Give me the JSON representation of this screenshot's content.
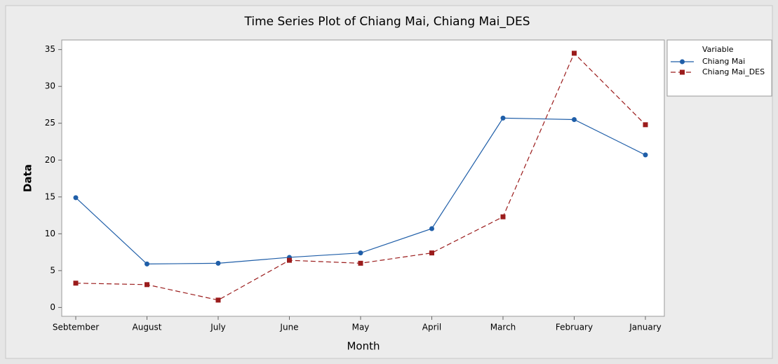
{
  "chart_data": {
    "type": "line",
    "title": "Time Series Plot of Chiang Mai, Chiang Mai_DES",
    "x_label": "Month",
    "y_label": "Data",
    "categories": [
      "Sebtember",
      "August",
      "July",
      "June",
      "May",
      "April",
      "March",
      "February",
      "January"
    ],
    "series": [
      {
        "name": "Chiang Mai",
        "color": "#1f5ea8",
        "line_style": "solid",
        "marker": "circle",
        "values": [
          14.9,
          5.9,
          6.0,
          6.8,
          7.4,
          10.7,
          25.7,
          25.5,
          20.7
        ]
      },
      {
        "name": "Chiang Mai_DES",
        "color": "#9b1c1c",
        "line_style": "dashed",
        "marker": "square",
        "values": [
          3.3,
          3.1,
          1.0,
          6.4,
          6.0,
          7.4,
          12.3,
          34.5,
          24.8
        ]
      }
    ],
    "ylim": [
      -1.2,
      36.3
    ],
    "yticks": [
      0,
      5,
      10,
      15,
      20,
      25,
      30,
      35
    ],
    "grid": false,
    "legend_title": "Variable",
    "legend": "right"
  }
}
